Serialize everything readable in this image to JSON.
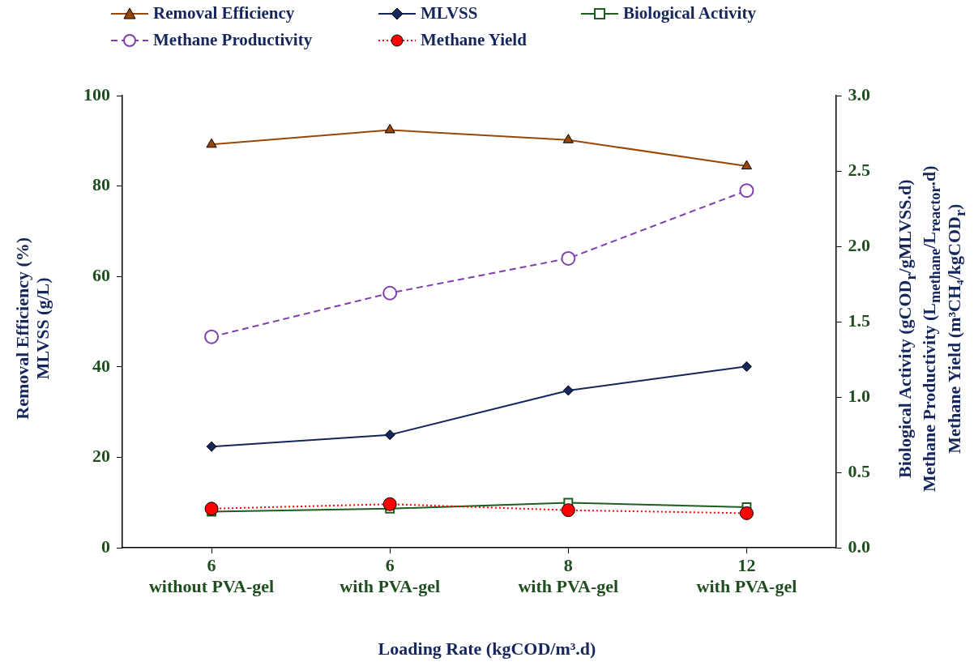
{
  "chart_data": {
    "type": "line",
    "categories": [
      "6\nwithout PVA-gel",
      "6\nwith PVA-gel",
      "8\nwith PVA-gel",
      "12\nwith PVA-gel"
    ],
    "xlabel": "Loading Rate (kgCOD/m³.d)",
    "ylabel": "Removal Efficiency (%)\nMLVSS (g/L)",
    "y2label": "Biological Activity (gCOD$_{r}$/gMLVSS.d)\nMethane Productivity (L$_{methane}$/L$_{reactor}$.d)\nMethane Yield (m³CH₄/kgCOD$_{r}$)",
    "ylim": [
      0,
      100
    ],
    "yticks": [
      0,
      20,
      40,
      60,
      80,
      100
    ],
    "y2lim": [
      0,
      3
    ],
    "y2ticks": [
      {
        "value": 0,
        "label": "0.0"
      },
      {
        "value": 0.5,
        "label": "0.5"
      },
      {
        "value": 1,
        "label": "1.0"
      },
      {
        "value": 1.5,
        "label": "1.5"
      },
      {
        "value": 2,
        "label": "2.0"
      },
      {
        "value": 2.5,
        "label": "2.5"
      },
      {
        "value": 3,
        "label": "3.0"
      }
    ],
    "grid": false,
    "legend": "top",
    "series": [
      {
        "name": "Removal Efficiency",
        "color": "#984807",
        "marker": "triangle",
        "line_style": "solid",
        "values": [
          89.2,
          92.4,
          90.2,
          84.4
        ]
      },
      {
        "name": "MLVSS",
        "color": "#14265c",
        "marker": "diamond",
        "line_style": "solid",
        "values": [
          22.4,
          25.0,
          34.8,
          40.1
        ]
      },
      {
        "name": "Biological Activity",
        "color": "#1f5c1f",
        "marker": "square",
        "line_style": "solid",
        "axis": "y2",
        "values": [
          0.24,
          0.26,
          0.3,
          0.27
        ]
      },
      {
        "name": "Methane Productivity",
        "color": "#7f3fae",
        "marker": "circle",
        "line_style": "dashed",
        "axis": "y2",
        "values": [
          1.4,
          1.69,
          1.92,
          2.37
        ]
      },
      {
        "name": "Methane Yield",
        "color": "#ff0000",
        "marker": "circle",
        "line_style": "dotted",
        "axis": "y2",
        "values": [
          0.26,
          0.29,
          0.25,
          0.23
        ]
      }
    ]
  }
}
